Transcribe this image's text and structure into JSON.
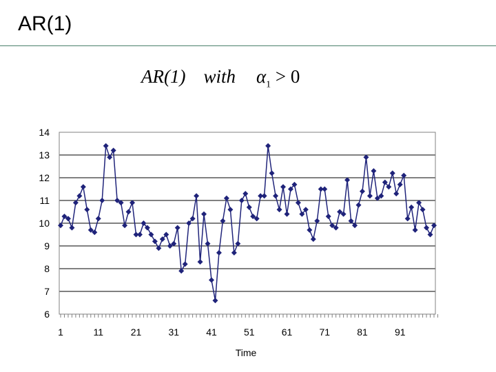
{
  "slide": {
    "title": "AR(1)",
    "formula": {
      "lhs": "AR(1)",
      "word": "with",
      "symbol": "α",
      "subscript": "1",
      "relation": "> 0"
    }
  },
  "chart_data": {
    "type": "line",
    "title": "",
    "xlabel": "Time",
    "ylabel": "",
    "ylim": [
      6,
      14
    ],
    "yticks": [
      6,
      7,
      8,
      9,
      10,
      11,
      12,
      13,
      14
    ],
    "xticks": [
      1,
      11,
      21,
      31,
      41,
      51,
      61,
      71,
      81,
      91
    ],
    "xlim": [
      1,
      100
    ],
    "grid": "horizontal",
    "legend": "none",
    "line_color": "#1f237a",
    "marker": "diamond",
    "x": [
      1,
      2,
      3,
      4,
      5,
      6,
      7,
      8,
      9,
      10,
      11,
      12,
      13,
      14,
      15,
      16,
      17,
      18,
      19,
      20,
      21,
      22,
      23,
      24,
      25,
      26,
      27,
      28,
      29,
      30,
      31,
      32,
      33,
      34,
      35,
      36,
      37,
      38,
      39,
      40,
      41,
      42,
      43,
      44,
      45,
      46,
      47,
      48,
      49,
      50,
      51,
      52,
      53,
      54,
      55,
      56,
      57,
      58,
      59,
      60,
      61,
      62,
      63,
      64,
      65,
      66,
      67,
      68,
      69,
      70,
      71,
      72,
      73,
      74,
      75,
      76,
      77,
      78,
      79,
      80,
      81,
      82,
      83,
      84,
      85,
      86,
      87,
      88,
      89,
      90,
      91,
      92,
      93,
      94,
      95,
      96,
      97,
      98,
      99,
      100
    ],
    "y": [
      9.9,
      10.3,
      10.2,
      9.8,
      10.9,
      11.2,
      11.6,
      10.6,
      9.7,
      9.6,
      10.2,
      11.0,
      13.4,
      12.9,
      13.2,
      11.0,
      10.9,
      9.9,
      10.5,
      10.9,
      9.5,
      9.5,
      10.0,
      9.8,
      9.5,
      9.2,
      8.9,
      9.3,
      9.5,
      9.0,
      9.1,
      9.8,
      7.9,
      8.2,
      10.0,
      10.2,
      11.2,
      8.3,
      10.4,
      9.1,
      7.5,
      6.6,
      8.7,
      10.1,
      11.1,
      10.6,
      8.7,
      9.1,
      11.0,
      11.3,
      10.7,
      10.3,
      10.2,
      11.2,
      11.2,
      13.4,
      12.2,
      11.2,
      10.6,
      11.6,
      10.4,
      11.5,
      11.7,
      10.9,
      10.4,
      10.6,
      9.7,
      9.3,
      10.1,
      11.5,
      11.5,
      10.3,
      9.9,
      9.8,
      10.5,
      10.4,
      11.9,
      10.1,
      9.9,
      10.8,
      11.4,
      12.9,
      11.2,
      12.3,
      11.1,
      11.2,
      11.8,
      11.6,
      12.2,
      11.3,
      11.7,
      12.1,
      10.2,
      10.7,
      9.7,
      10.9,
      10.6,
      9.8,
      9.5,
      9.9
    ]
  }
}
